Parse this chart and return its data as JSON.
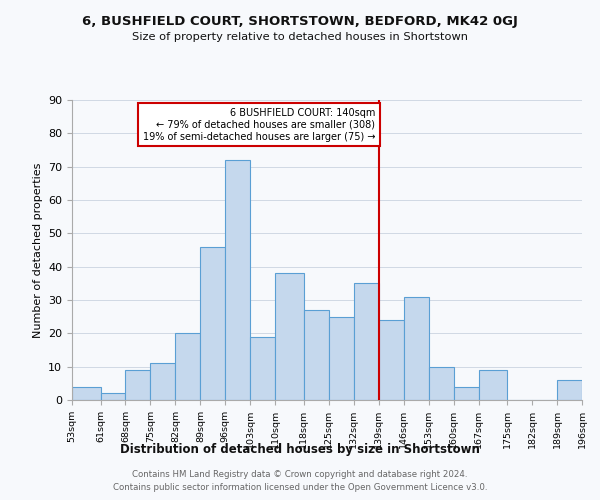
{
  "title": "6, BUSHFIELD COURT, SHORTSTOWN, BEDFORD, MK42 0GJ",
  "subtitle": "Size of property relative to detached houses in Shortstown",
  "xlabel": "Distribution of detached houses by size in Shortstown",
  "ylabel": "Number of detached properties",
  "bin_edges": [
    53,
    61,
    68,
    75,
    82,
    89,
    96,
    103,
    110,
    118,
    125,
    132,
    139,
    146,
    153,
    160,
    167,
    175,
    182,
    189,
    196
  ],
  "bin_labels": [
    "53sqm",
    "61sqm",
    "68sqm",
    "75sqm",
    "82sqm",
    "89sqm",
    "96sqm",
    "103sqm",
    "110sqm",
    "118sqm",
    "125sqm",
    "132sqm",
    "139sqm",
    "146sqm",
    "153sqm",
    "160sqm",
    "167sqm",
    "175sqm",
    "182sqm",
    "189sqm",
    "196sqm"
  ],
  "counts": [
    4,
    2,
    9,
    11,
    20,
    46,
    72,
    19,
    38,
    27,
    25,
    35,
    24,
    31,
    10,
    4,
    9,
    0,
    0,
    6
  ],
  "bar_color": "#c5d8ed",
  "bar_edge_color": "#5a9fd4",
  "vline_x": 139,
  "vline_color": "#cc0000",
  "annotation_title": "6 BUSHFIELD COURT: 140sqm",
  "annotation_line1": "← 79% of detached houses are smaller (308)",
  "annotation_line2": "19% of semi-detached houses are larger (75) →",
  "annotation_box_color": "#ffffff",
  "annotation_box_edge": "#cc0000",
  "footer_line1": "Contains HM Land Registry data © Crown copyright and database right 2024.",
  "footer_line2": "Contains public sector information licensed under the Open Government Licence v3.0.",
  "ylim": [
    0,
    90
  ],
  "yticks": [
    0,
    10,
    20,
    30,
    40,
    50,
    60,
    70,
    80,
    90
  ],
  "background_color": "#f7f9fc",
  "grid_color": "#d0d8e4"
}
